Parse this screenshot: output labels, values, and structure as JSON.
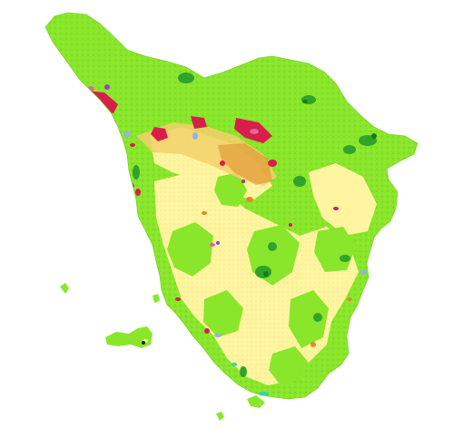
{
  "map": {
    "background_color": "#ffffff",
    "legend_visible": false,
    "title_visible": false,
    "land_cover_classes": [
      {
        "key": "forest_light",
        "color": "#8ae62b"
      },
      {
        "key": "forest_dark",
        "color": "#2fa32a"
      },
      {
        "key": "forest_deep",
        "color": "#1a7a1a"
      },
      {
        "key": "agricultural",
        "color": "#fff5a0"
      },
      {
        "key": "agri_mixed",
        "color": "#f2d06b"
      },
      {
        "key": "vineyard_orchard",
        "color": "#e08a2a"
      },
      {
        "key": "urban",
        "color": "#d81e4a"
      },
      {
        "key": "urban_pink",
        "color": "#e066a0"
      },
      {
        "key": "water",
        "color": "#8fb4e8"
      },
      {
        "key": "wetland",
        "color": "#3ccfb0"
      },
      {
        "key": "industrial",
        "color": "#a040c0"
      },
      {
        "key": "bare",
        "color": "#c8c8c8"
      }
    ],
    "region_name": "",
    "islands_present": true
  }
}
